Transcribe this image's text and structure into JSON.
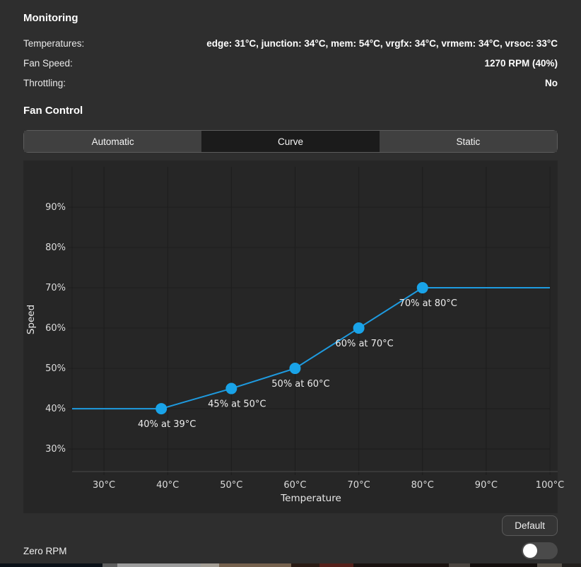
{
  "monitoring": {
    "title": "Monitoring",
    "rows": [
      {
        "label": "Temperatures:",
        "value": "edge: 31°C, junction: 34°C, mem: 54°C, vrgfx: 34°C, vrmem: 34°C, vrsoc: 33°C"
      },
      {
        "label": "Fan Speed:",
        "value": "1270 RPM (40%)"
      },
      {
        "label": "Throttling:",
        "value": "No"
      }
    ]
  },
  "fan_control": {
    "title": "Fan Control",
    "tabs": [
      {
        "label": "Automatic",
        "selected": false
      },
      {
        "label": "Curve",
        "selected": true
      },
      {
        "label": "Static",
        "selected": false
      }
    ],
    "default_button": "Default",
    "zero_rpm_label": "Zero RPM",
    "zero_rpm_enabled": false
  },
  "chart_data": {
    "type": "line",
    "title": "",
    "xlabel": "Temperature",
    "ylabel": "Speed",
    "points": [
      {
        "x": 39,
        "y": 40,
        "label": "40% at 39°C"
      },
      {
        "x": 50,
        "y": 45,
        "label": "45% at 50°C"
      },
      {
        "x": 60,
        "y": 50,
        "label": "50% at 60°C"
      },
      {
        "x": 70,
        "y": 60,
        "label": "60% at 70°C"
      },
      {
        "x": 80,
        "y": 70,
        "label": "70% at 80°C"
      }
    ],
    "line_extends_flat": {
      "left_to_x": 25,
      "right_to_x": 100
    },
    "xticks": {
      "values": [
        30,
        40,
        50,
        60,
        70,
        80,
        90,
        100
      ],
      "labels": [
        "30°C",
        "40°C",
        "50°C",
        "60°C",
        "70°C",
        "80°C",
        "90°C",
        "100°C"
      ]
    },
    "yticks": {
      "values": [
        30,
        40,
        50,
        60,
        70,
        80,
        90
      ],
      "labels": [
        "30%",
        "40%",
        "50%",
        "60%",
        "70%",
        "80%",
        "90%"
      ]
    },
    "x_range": [
      25,
      100
    ],
    "y_range_displayed": [
      24.4,
      100
    ],
    "grid": true,
    "legend": "none",
    "line_color": "#1e9be0",
    "point_color": "#19a3e8",
    "grid_color": "#1d1d1d",
    "frame_color": "#4a4a4a",
    "background_color": "#262626"
  },
  "desktop_strip": {
    "segments": [
      {
        "width": 145,
        "color": "#0b1118"
      },
      {
        "width": 21,
        "color": "#5e5e5e"
      },
      {
        "width": 118,
        "color": "#9b9b9b"
      },
      {
        "width": 26,
        "color": "#a39d94"
      },
      {
        "width": 102,
        "color": "#75614d"
      },
      {
        "width": 40,
        "color": "#2a1b14"
      },
      {
        "width": 48,
        "color": "#55201a"
      },
      {
        "width": 135,
        "color": "#1a1210"
      },
      {
        "width": 30,
        "color": "#4a443f"
      },
      {
        "width": 95,
        "color": "#140f0d"
      },
      {
        "width": 35,
        "color": "#565049"
      },
      {
        "width": 27,
        "color": "#23201d"
      }
    ]
  }
}
